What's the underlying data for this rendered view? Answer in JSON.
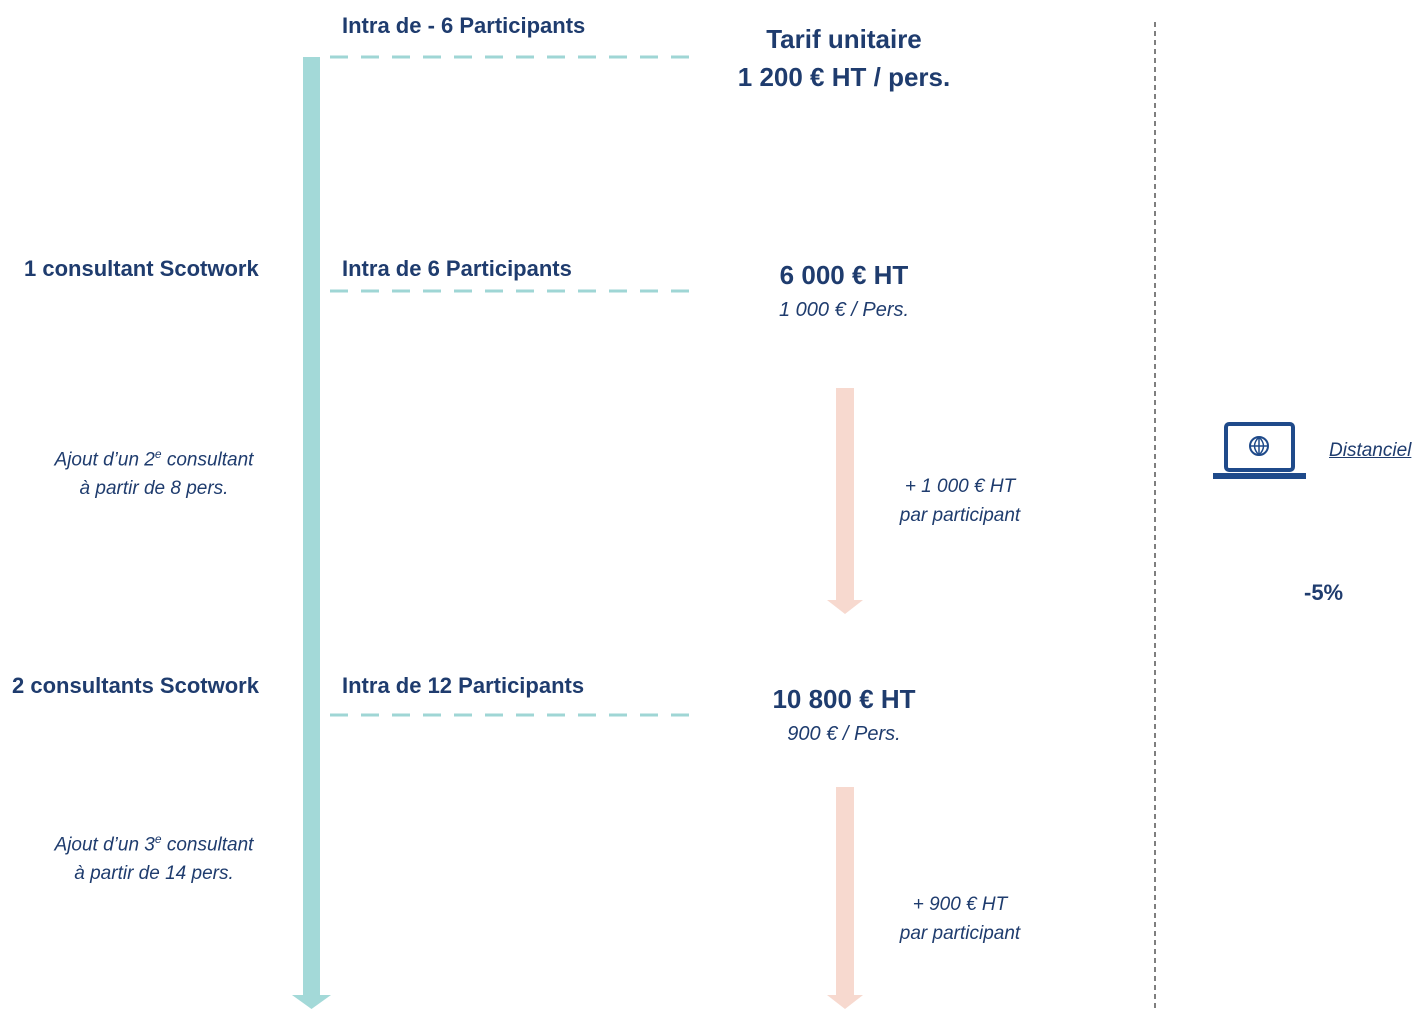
{
  "levels": [
    {
      "tier": "Intra de - 6 Participants",
      "price": "Tarif unitaire",
      "detail": "1 200 € HT / pers."
    },
    {
      "consultants": "1 consultant Scotwork",
      "tier": "Intra de 6 Participants",
      "price": "6 000 € HT",
      "detail": "1 000 € / Pers."
    },
    {
      "consultants": "2 consultants Scotwork",
      "tier": "Intra de 12 Participants",
      "price": "10 800 € HT",
      "detail": "900 € / Pers."
    }
  ],
  "notes": [
    {
      "prefix": "Ajout d’un 2",
      "sup": "e",
      "suffix": " consultant",
      "line2": "à partir de 8 pers."
    },
    {
      "prefix": "Ajout d’un 3",
      "sup": "e",
      "suffix": " consultant",
      "line2": "à partir de 14 pers."
    }
  ],
  "increments": [
    {
      "amount": "+ 1 000 € HT",
      "unit": "par participant"
    },
    {
      "amount": "+ 900 € HT",
      "unit": "par participant"
    }
  ],
  "remote": {
    "label": "Distanciel",
    "discount": "-5%"
  }
}
